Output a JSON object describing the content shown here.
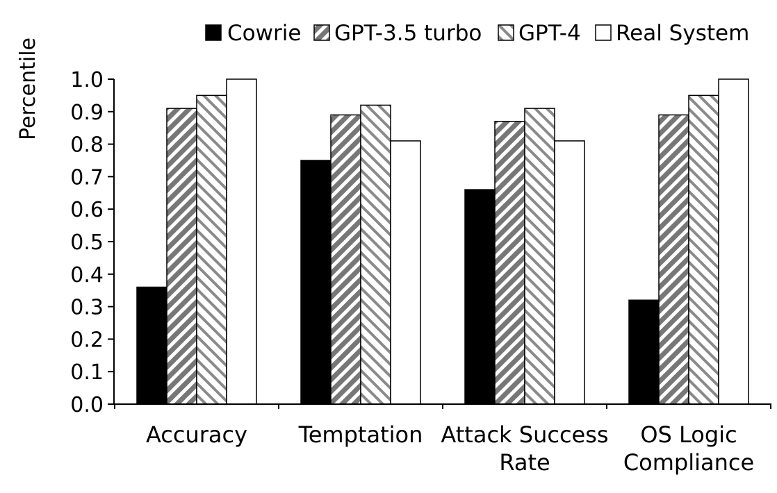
{
  "chart_data": {
    "type": "bar",
    "title": "",
    "xlabel": "",
    "ylabel": "Percentile",
    "ylim": [
      0.0,
      1.0
    ],
    "yticks": [
      "0.0",
      "0.1",
      "0.2",
      "0.3",
      "0.4",
      "0.5",
      "0.6",
      "0.7",
      "0.8",
      "0.9",
      "1.0"
    ],
    "grid": false,
    "legend_position": "top-right",
    "categories": [
      [
        "Accuracy"
      ],
      [
        "Temptation"
      ],
      [
        "Attack Success",
        "Rate"
      ],
      [
        "OS Logic",
        "Compliance"
      ]
    ],
    "series": [
      {
        "name": "Cowrie",
        "pattern": "solid-black",
        "values": [
          0.36,
          0.75,
          0.66,
          0.32
        ]
      },
      {
        "name": "GPT-3.5 turbo",
        "pattern": "diagonal-hatch-gray",
        "values": [
          0.91,
          0.89,
          0.87,
          0.89
        ]
      },
      {
        "name": "GPT-4",
        "pattern": "diagonal-hatch-light",
        "values": [
          0.95,
          0.92,
          0.91,
          0.95
        ]
      },
      {
        "name": "Real System",
        "pattern": "white",
        "values": [
          1.0,
          0.81,
          0.81,
          1.0
        ]
      }
    ]
  }
}
